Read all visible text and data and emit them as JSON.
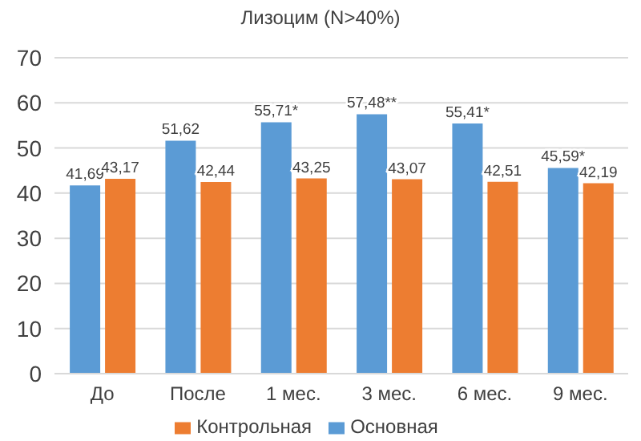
{
  "chart_data": {
    "type": "bar",
    "title": "Лизоцим (N>40%)",
    "categories": [
      "До",
      "После",
      "1 мес.",
      "3 мес.",
      "6 мес.",
      "9 мес."
    ],
    "series": [
      {
        "name": "Основная",
        "color": "#5b9bd5",
        "values": [
          41.69,
          51.62,
          55.71,
          57.48,
          55.41,
          45.59
        ],
        "value_labels": [
          "41,69",
          "51,62",
          "55,71*",
          "57,48**",
          "55,41*",
          "45,59*"
        ]
      },
      {
        "name": "Контрольная",
        "color": "#ed7d31",
        "values": [
          43.17,
          42.44,
          43.25,
          43.07,
          42.51,
          42.19
        ],
        "value_labels": [
          "43,17",
          "42,44",
          "43,25",
          "43,07",
          "42,51",
          "42,19"
        ]
      }
    ],
    "ylim": [
      0,
      70
    ],
    "yticks": [
      0,
      10,
      20,
      30,
      40,
      50,
      60,
      70
    ],
    "grid": "y",
    "legend": "bottom"
  }
}
